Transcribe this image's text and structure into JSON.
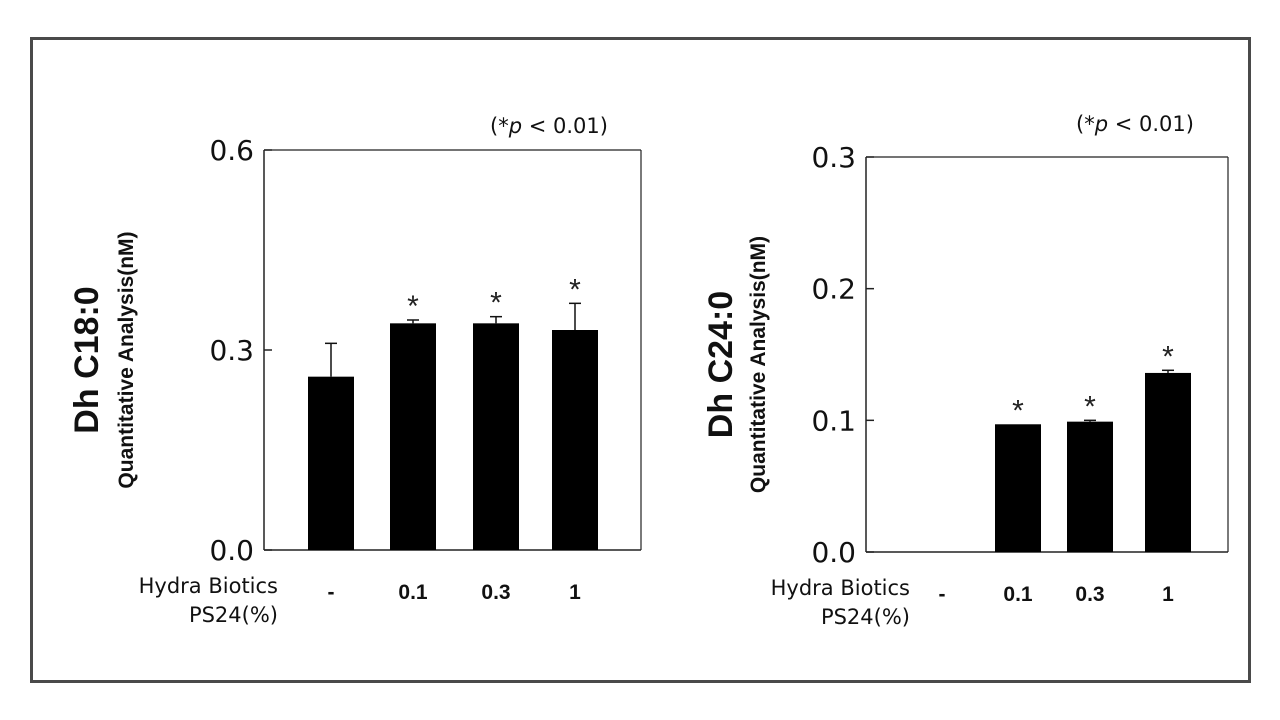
{
  "chart_data": [
    {
      "type": "bar",
      "title": "Dh C18:0",
      "ylabel": "Quantitative Analysis(nM)",
      "annotation_prefix": "(*",
      "annotation_p": "p",
      "annotation_suffix": " < 0.01)",
      "xlabel_lines": [
        "Hydra Biotics",
        "PS24(%)"
      ],
      "categories": [
        "-",
        "0.1",
        "0.3",
        "1"
      ],
      "values": [
        0.26,
        0.34,
        0.34,
        0.33
      ],
      "errors": [
        0.05,
        0.005,
        0.01,
        0.04
      ],
      "significant": [
        false,
        true,
        true,
        true
      ],
      "star_symbol": "*",
      "ylim": [
        0,
        0.6
      ],
      "yticks": [
        "0.0",
        "0.3",
        "0.6"
      ],
      "bar_color": "#000000",
      "grid": false
    },
    {
      "type": "bar",
      "title": "Dh C24:0",
      "ylabel": "Quantitative Analysis(nM)",
      "annotation_prefix": "(*",
      "annotation_p": "p",
      "annotation_suffix": " < 0.01)",
      "xlabel_lines": [
        "Hydra Biotics",
        "PS24(%)"
      ],
      "categories": [
        "-",
        "0.1",
        "0.3",
        "1"
      ],
      "values": [
        0,
        0.097,
        0.099,
        0.136
      ],
      "errors": [
        0,
        0,
        0.001,
        0.002
      ],
      "significant": [
        false,
        true,
        true,
        true
      ],
      "star_symbol": "*",
      "ylim": [
        0,
        0.3
      ],
      "yticks": [
        "0.0",
        "0.1",
        "0.2",
        "0.3"
      ],
      "bar_color": "#000000",
      "grid": false
    }
  ]
}
